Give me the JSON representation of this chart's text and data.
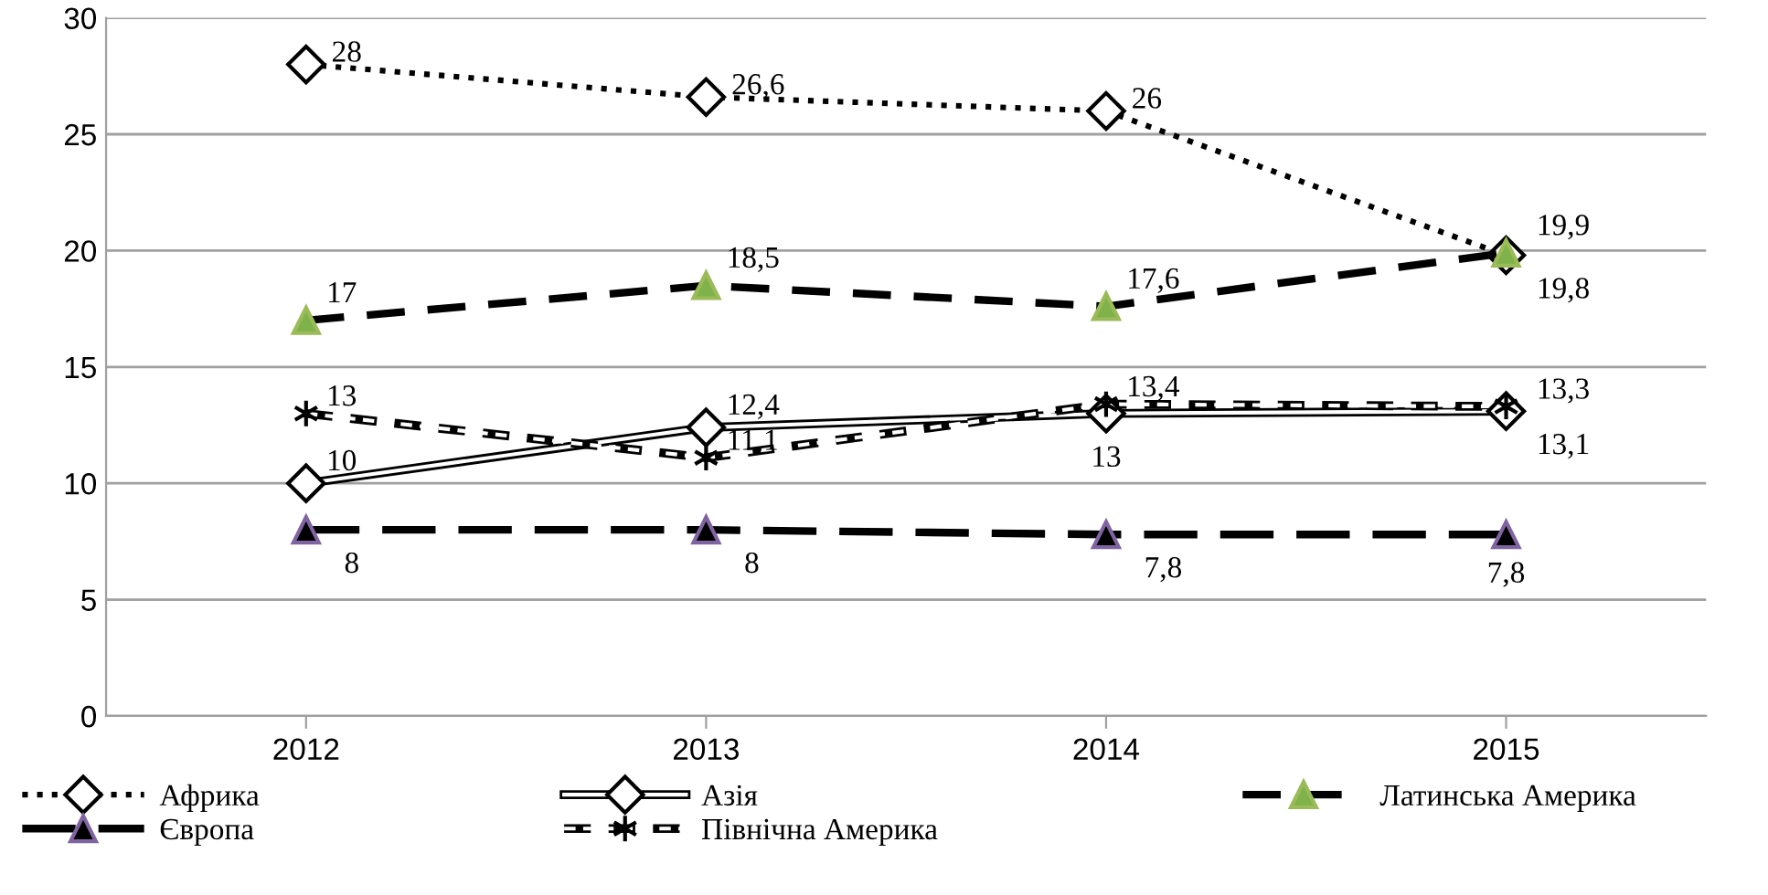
{
  "chart_data": {
    "type": "line",
    "categories": [
      "2012",
      "2013",
      "2014",
      "2015"
    ],
    "ylim": [
      0,
      30
    ],
    "yticks": [
      0,
      5,
      10,
      15,
      20,
      25,
      30
    ],
    "grid": "y",
    "legend": "bottom",
    "series": [
      {
        "name": "Африка",
        "color": "#000000",
        "marker": "diamond",
        "line_style": "dotted",
        "values": [
          28,
          26.6,
          26,
          19.8
        ],
        "value_labels": [
          "28",
          "26,6",
          "26",
          "19,8"
        ]
      },
      {
        "name": "Азія",
        "color": "#000000",
        "marker": "diamond",
        "line_style": "solid",
        "values": [
          10,
          12.4,
          13,
          13.1
        ],
        "value_labels": [
          "10",
          "12,4",
          "13",
          "13,1"
        ]
      },
      {
        "name": "Латинська Америка",
        "color": "#000000",
        "marker": "triangle",
        "line_style": "dashed",
        "values": [
          17,
          18.5,
          17.6,
          19.9
        ],
        "value_labels": [
          "17",
          "18,5",
          "17,6",
          "19,9"
        ]
      },
      {
        "name": "Європа",
        "color": "#000000",
        "marker": "triangle",
        "line_style": "dashed",
        "values": [
          8,
          8,
          7.8,
          7.8
        ],
        "value_labels": [
          "8",
          "8",
          "7,8",
          "7,8"
        ]
      },
      {
        "name": "Північна Америка",
        "color": "#000000",
        "marker": "cross",
        "line_style": "dashed",
        "values": [
          13,
          11.1,
          13.4,
          13.3
        ],
        "value_labels": [
          "13",
          "11,1",
          "13,4",
          "13,3"
        ]
      }
    ]
  }
}
